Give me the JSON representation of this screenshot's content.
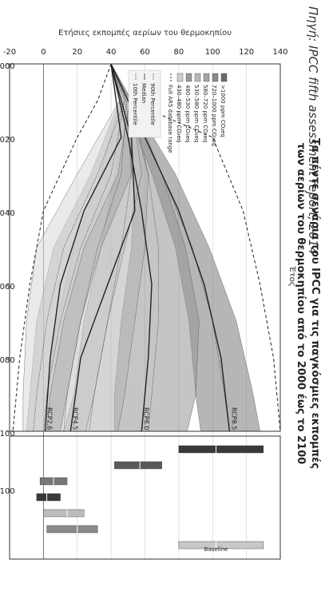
{
  "title_line1": "Τα πέντε σενάρια του IPCC για τις παγκόσμιες εκπομπές",
  "title_line2": "των αερίων του θερμοκηπίου από το 2000 έως το 2100",
  "source": "Πηγή: IPCC fifth assessment report, 2014",
  "chart_data": {
    "type": "area",
    "ylabel": "Ετήσιες εκπομπές αερίων του θερμοκηπίου",
    "xlabel": "Έτος",
    "xlim": [
      2000,
      2100
    ],
    "ylim": [
      -20,
      140
    ],
    "x_ticks": [
      2000,
      2020,
      2040,
      2060,
      2080,
      2100
    ],
    "y_ticks": [
      -20,
      0,
      20,
      40,
      60,
      80,
      100,
      120,
      140
    ],
    "grid": true,
    "legend_position": "top-right",
    "legend": [
      {
        "label": ">1000    ppm CO₂eq",
        "color": "#6b6b6b"
      },
      {
        "label": "720–1000 ppm CO₂eq",
        "color": "#8a8a8a"
      },
      {
        "label": "580–720  ppm CO₂eq",
        "color": "#a3a3a3"
      },
      {
        "label": "530–580  ppm CO₂eq",
        "color": "#bababa"
      },
      {
        "label": "480–530  ppm CO₂eq",
        "color": "#9a9a9a"
      },
      {
        "label": "430–480  ppm CO₂eq",
        "color": "#cfcfcf"
      },
      {
        "label": "Full AR5 database range",
        "style": "dashed"
      }
    ],
    "legend_stats": [
      "90th Percentile",
      "Median",
      "10th Percentile"
    ],
    "rcp_labels": [
      {
        "name": "RCP8.5",
        "value": 110
      },
      {
        "name": "RCP6.0",
        "value": 58
      },
      {
        "name": "RCP4.5",
        "value": 16
      },
      {
        "name": "RCP2.6",
        "value": 1
      }
    ],
    "series": [
      {
        "name": ">1000 ppm CO₂eq",
        "x": [
          2000,
          2010,
          2030,
          2050,
          2070,
          2090,
          2100
        ],
        "upper": [
          40,
          52,
          78,
          98,
          114,
          124,
          128
        ],
        "lower": [
          40,
          48,
          64,
          78,
          86,
          90,
          93
        ],
        "median": [
          40,
          50,
          70,
          88,
          100,
          107,
          110
        ]
      },
      {
        "name": "720–1000 ppm CO₂eq",
        "x": [
          2000,
          2010,
          2030,
          2050,
          2070,
          2090,
          2100
        ],
        "upper": [
          40,
          52,
          70,
          84,
          92,
          90,
          85
        ],
        "lower": [
          40,
          47,
          54,
          52,
          46,
          42,
          42
        ],
        "median": [
          40,
          50,
          62,
          68,
          68,
          64,
          62
        ]
      },
      {
        "name": "580–720 ppm CO₂eq",
        "x": [
          2000,
          2010,
          2030,
          2050,
          2070,
          2090,
          2100
        ],
        "upper": [
          40,
          52,
          62,
          60,
          54,
          48,
          44
        ],
        "lower": [
          40,
          46,
          42,
          34,
          24,
          18,
          12
        ],
        "median": [
          40,
          49,
          52,
          46,
          38,
          30,
          27
        ]
      },
      {
        "name": "530–580 ppm CO₂eq",
        "x": [
          2000,
          2010,
          2030,
          2050,
          2070,
          2090,
          2100
        ],
        "upper": [
          40,
          52,
          58,
          48,
          38,
          30,
          25
        ],
        "lower": [
          40,
          45,
          34,
          18,
          8,
          2,
          2
        ],
        "median": [
          40,
          49,
          46,
          32,
          22,
          14,
          12
        ]
      },
      {
        "name": "480–530 ppm CO₂eq",
        "x": [
          2000,
          2010,
          2030,
          2050,
          2070,
          2090,
          2100
        ],
        "upper": [
          40,
          52,
          52,
          34,
          22,
          14,
          10
        ],
        "lower": [
          40,
          45,
          28,
          6,
          -4,
          -8,
          -10
        ],
        "median": [
          40,
          48,
          40,
          22,
          10,
          2,
          0
        ]
      },
      {
        "name": "430–480 ppm CO₂eq",
        "x": [
          2000,
          2010,
          2030,
          2050,
          2070,
          2090,
          2100
        ],
        "upper": [
          40,
          51,
          44,
          24,
          12,
          4,
          2
        ],
        "lower": [
          40,
          45,
          20,
          -4,
          -10,
          -12,
          -12
        ],
        "median": [
          40,
          48,
          32,
          12,
          2,
          -4,
          -6
        ]
      },
      {
        "name": "Full AR5 database range",
        "x": [
          2000,
          2010,
          2020,
          2040,
          2060,
          2080,
          2090,
          2100
        ],
        "upper": [
          40,
          50,
          100,
          118,
          128,
          136,
          138,
          140
        ],
        "lower": [
          40,
          32,
          20,
          0,
          -8,
          -14,
          -16,
          -18
        ]
      },
      {
        "name": "RCP8.5",
        "x": [
          2000,
          2020,
          2040,
          2060,
          2080,
          2100
        ],
        "values": [
          40,
          60,
          80,
          95,
          105,
          110
        ]
      },
      {
        "name": "RCP6.0",
        "x": [
          2000,
          2020,
          2040,
          2060,
          2080,
          2100
        ],
        "values": [
          40,
          50,
          58,
          64,
          62,
          58
        ]
      },
      {
        "name": "RCP4.5",
        "x": [
          2000,
          2020,
          2040,
          2060,
          2080,
          2100
        ],
        "values": [
          40,
          52,
          54,
          38,
          22,
          16
        ]
      },
      {
        "name": "RCP2.6",
        "x": [
          2000,
          2020,
          2040,
          2060,
          2080,
          2100
        ],
        "values": [
          40,
          46,
          24,
          10,
          4,
          1
        ]
      }
    ],
    "side_panel": {
      "label": "Baseline",
      "tick_label": "2100",
      "bars": [
        {
          "min": 80,
          "max": 130,
          "median": 102,
          "color": "#3a3a3a"
        },
        {
          "min": 42,
          "max": 70,
          "median": 57,
          "color": "#5a5a5a"
        },
        {
          "min": -2,
          "max": 14,
          "median": 6,
          "color": "#777777"
        },
        {
          "min": -4,
          "max": 10,
          "median": 2,
          "color": "#3a3a3a"
        },
        {
          "min": 0,
          "max": 24,
          "median": 14,
          "color": "#bdbdbd"
        },
        {
          "min": 2,
          "max": 32,
          "median": 20,
          "color": "#8a8a8a"
        },
        {
          "min": 80,
          "max": 130,
          "median": 102,
          "color": "#c8c8c8"
        }
      ]
    }
  }
}
